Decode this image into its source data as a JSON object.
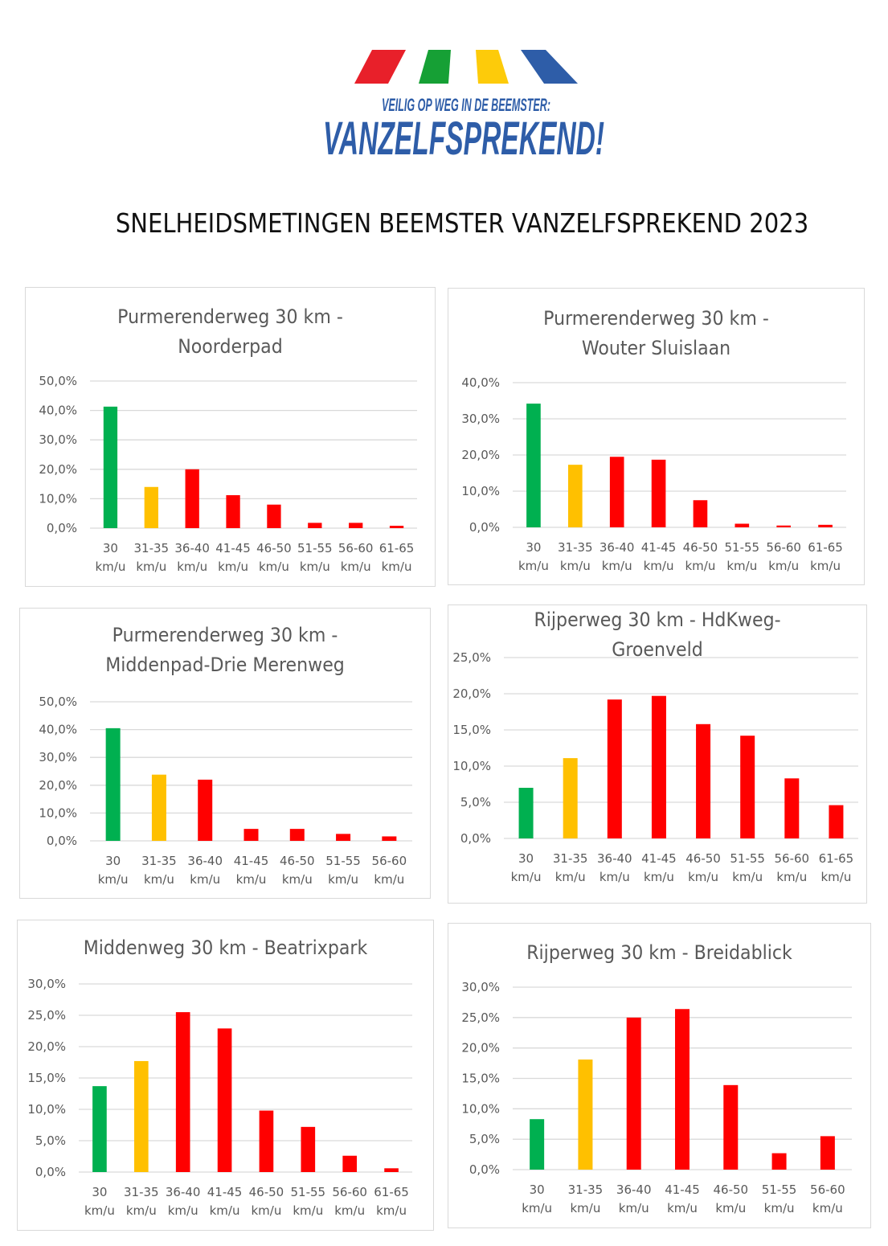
{
  "logo": {
    "tagline": "VEILIG OP WEG IN DE BEEMSTER:",
    "wordmark": "VANZELFSPREKEND!",
    "stripe_colors": [
      "#e8202a",
      "#16a035",
      "#fdcb0a",
      "#2e5da8"
    ],
    "text_color": "#2e5da8"
  },
  "page": {
    "title": "SNELHEIDSMETINGEN BEEMSTER VANZELFSPREKEND 2023"
  },
  "colors": {
    "green": "#00b050",
    "yellow": "#ffc000",
    "red": "#ff0000",
    "grid": "#d9d9d9",
    "text": "#595959"
  },
  "chart_data": [
    {
      "id": "noorderpad",
      "type": "bar",
      "title_lines": [
        "Purmerenderweg 30 km -",
        "Noorderpad"
      ],
      "categories": [
        "30|km/u",
        "31-35|km/u",
        "36-40|km/u",
        "41-45|km/u",
        "46-50|km/u",
        "51-55|km/u",
        "56-60|km/u",
        "61-65|km/u"
      ],
      "values": [
        41.3,
        14.0,
        20.0,
        11.2,
        8.0,
        1.8,
        1.8,
        0.8
      ],
      "bar_colors": [
        "green",
        "yellow",
        "red",
        "red",
        "red",
        "red",
        "red",
        "red"
      ],
      "ylim": [
        0,
        50
      ],
      "yticks": [
        "0,0%",
        "10,0%",
        "20,0%",
        "30,0%",
        "40,0%",
        "50,0%"
      ],
      "xlabel": "",
      "ylabel": "",
      "grid": true,
      "legend": "none"
    },
    {
      "id": "wouter-sluislaan",
      "type": "bar",
      "title_lines": [
        "Purmerenderweg 30 km -",
        "Wouter Sluislaan"
      ],
      "categories": [
        "30|km/u",
        "31-35|km/u",
        "36-40|km/u",
        "41-45|km/u",
        "46-50|km/u",
        "51-55|km/u",
        "56-60|km/u",
        "61-65|km/u"
      ],
      "values": [
        34.2,
        17.3,
        19.5,
        18.7,
        7.5,
        1.0,
        0.5,
        0.7
      ],
      "bar_colors": [
        "green",
        "yellow",
        "red",
        "red",
        "red",
        "red",
        "red",
        "red"
      ],
      "ylim": [
        0,
        40
      ],
      "yticks": [
        "0,0%",
        "10,0%",
        "20,0%",
        "30,0%",
        "40,0%"
      ],
      "xlabel": "",
      "ylabel": "",
      "grid": true,
      "legend": "none"
    },
    {
      "id": "middenpad-drie-merenweg",
      "type": "bar",
      "title_lines": [
        "Purmerenderweg 30 km -",
        "Middenpad-Drie Merenweg"
      ],
      "categories": [
        "30|km/u",
        "31-35|km/u",
        "36-40|km/u",
        "41-45|km/u",
        "46-50|km/u",
        "51-55|km/u",
        "56-60|km/u"
      ],
      "values": [
        40.5,
        23.8,
        22.0,
        4.3,
        4.3,
        2.5,
        1.6
      ],
      "bar_colors": [
        "green",
        "yellow",
        "red",
        "red",
        "red",
        "red",
        "red"
      ],
      "ylim": [
        0,
        50
      ],
      "yticks": [
        "0,0%",
        "10,0%",
        "20,0%",
        "30,0%",
        "40,0%",
        "50,0%"
      ],
      "xlabel": "",
      "ylabel": "",
      "grid": true,
      "legend": "none"
    },
    {
      "id": "hdkweg-groenveld",
      "type": "bar",
      "title_lines": [
        "Rijperweg 30 km - HdKweg-",
        "Groenveld"
      ],
      "categories": [
        "30|km/u",
        "31-35|km/u",
        "36-40|km/u",
        "41-45|km/u",
        "46-50|km/u",
        "51-55|km/u",
        "56-60|km/u",
        "61-65|km/u"
      ],
      "values": [
        7.0,
        11.1,
        19.2,
        19.7,
        15.8,
        14.2,
        8.3,
        4.6
      ],
      "bar_colors": [
        "green",
        "yellow",
        "red",
        "red",
        "red",
        "red",
        "red",
        "red"
      ],
      "ylim": [
        0,
        25
      ],
      "yticks": [
        "0,0%",
        "5,0%",
        "10,0%",
        "15,0%",
        "20,0%",
        "25,0%"
      ],
      "xlabel": "",
      "ylabel": "",
      "grid": true,
      "legend": "none"
    },
    {
      "id": "beatrixpark",
      "type": "bar",
      "title_lines": [
        "Middenweg 30 km - Beatrixpark"
      ],
      "categories": [
        "30|km/u",
        "31-35|km/u",
        "36-40|km/u",
        "41-45|km/u",
        "46-50|km/u",
        "51-55|km/u",
        "56-60|km/u",
        "61-65|km/u"
      ],
      "values": [
        13.7,
        17.7,
        25.5,
        22.9,
        9.8,
        7.2,
        2.6,
        0.6
      ],
      "bar_colors": [
        "green",
        "yellow",
        "red",
        "red",
        "red",
        "red",
        "red",
        "red"
      ],
      "ylim": [
        0,
        30
      ],
      "yticks": [
        "0,0%",
        "5,0%",
        "10,0%",
        "15,0%",
        "20,0%",
        "25,0%",
        "30,0%"
      ],
      "xlabel": "",
      "ylabel": "",
      "grid": true,
      "legend": "none"
    },
    {
      "id": "breidablick",
      "type": "bar",
      "title_lines": [
        "Rijperweg 30 km - Breidablick"
      ],
      "categories": [
        "30|km/u",
        "31-35|km/u",
        "36-40|km/u",
        "41-45|km/u",
        "46-50|km/u",
        "51-55|km/u",
        "56-60|km/u"
      ],
      "values": [
        8.3,
        18.1,
        25.0,
        26.4,
        13.9,
        2.7,
        5.5
      ],
      "bar_colors": [
        "green",
        "yellow",
        "red",
        "red",
        "red",
        "red",
        "red"
      ],
      "ylim": [
        0,
        30
      ],
      "yticks": [
        "0,0%",
        "5,0%",
        "10,0%",
        "15,0%",
        "20,0%",
        "25,0%",
        "30,0%"
      ],
      "xlabel": "",
      "ylabel": "",
      "grid": true,
      "legend": "none"
    }
  ]
}
